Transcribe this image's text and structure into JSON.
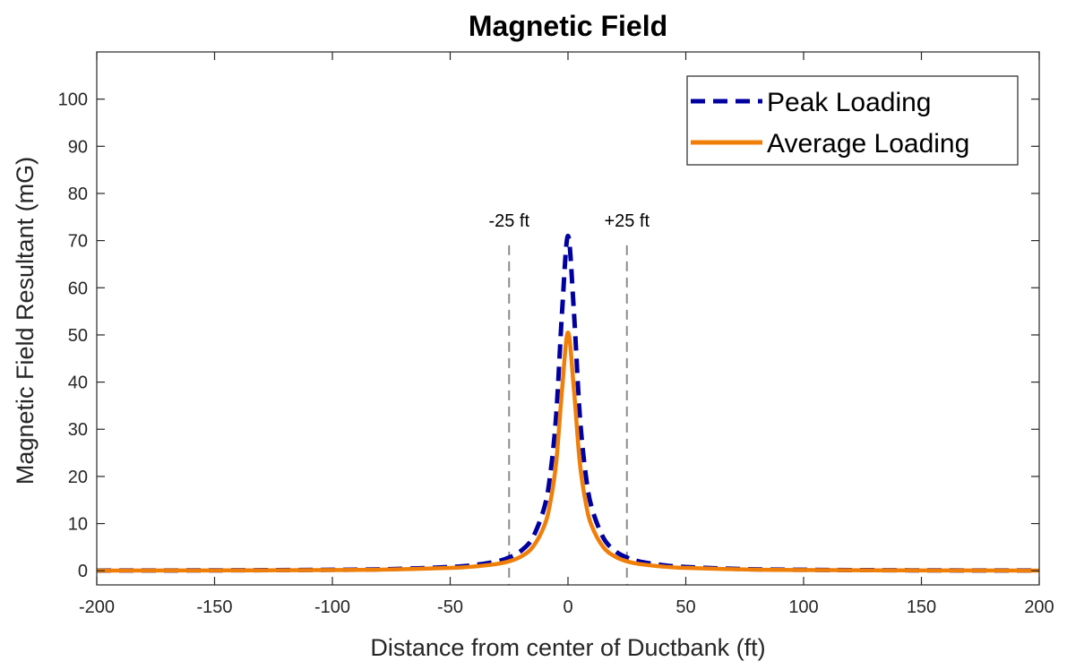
{
  "chart_data": {
    "type": "line",
    "title": "Magnetic Field",
    "xlabel": "Distance from center of Ductbank (ft)",
    "ylabel": "Magnetic Field Resultant (mG)",
    "xlim": [
      -200,
      200
    ],
    "ylim": [
      -3,
      110
    ],
    "xticks": [
      -200,
      -150,
      -100,
      -50,
      0,
      50,
      100,
      150,
      200
    ],
    "yticks": [
      0,
      10,
      20,
      30,
      40,
      50,
      60,
      70,
      80,
      90,
      100
    ],
    "grid": false,
    "legend_position": "top-right",
    "x": [
      -200,
      -150,
      -100,
      -75,
      -50,
      -40,
      -30,
      -25,
      -20,
      -15,
      -10,
      -7.5,
      -5,
      -2.5,
      0,
      2.5,
      5,
      7.5,
      10,
      15,
      20,
      25,
      30,
      40,
      50,
      75,
      100,
      150,
      200
    ],
    "series": [
      {
        "name": "Peak Loading",
        "color": "#0000A0",
        "style": "dashed",
        "values": [
          0.05,
          0.09,
          0.2,
          0.35,
          0.8,
          1.2,
          2.0,
          2.8,
          4.2,
          7.0,
          13.5,
          20.5,
          33.0,
          55.0,
          71.0,
          55.0,
          33.0,
          20.5,
          13.5,
          7.0,
          4.2,
          2.8,
          2.0,
          1.2,
          0.8,
          0.35,
          0.2,
          0.09,
          0.05
        ]
      },
      {
        "name": "Average Loading",
        "color": "#F07F09",
        "style": "solid",
        "values": [
          0.04,
          0.07,
          0.15,
          0.27,
          0.6,
          0.9,
          1.45,
          2.0,
          3.0,
          5.0,
          9.6,
          14.5,
          23.0,
          38.5,
          50.5,
          38.5,
          23.0,
          14.5,
          9.6,
          5.0,
          3.0,
          2.0,
          1.45,
          0.9,
          0.6,
          0.27,
          0.15,
          0.07,
          0.04
        ]
      }
    ],
    "reference_lines": [
      {
        "x": -25,
        "label": "-25 ft",
        "color": "#8C8C8C"
      },
      {
        "x": 25,
        "label": "+25 ft",
        "color": "#8C8C8C"
      }
    ]
  }
}
